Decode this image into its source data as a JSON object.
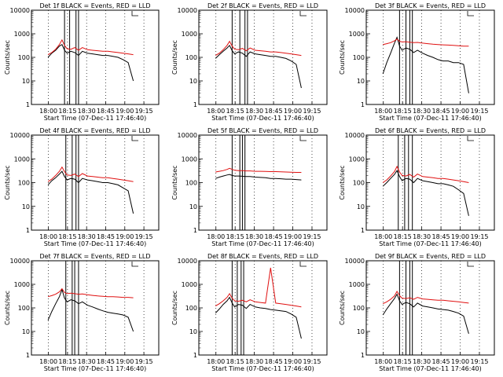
{
  "shared": {
    "ylabel": "Counts/sec",
    "x_ticks": [
      "18:00",
      "18:15",
      "18:30",
      "18:45",
      "19:00",
      "19:15"
    ],
    "y_ticks": [
      "1",
      "10",
      "100",
      "1000",
      "10000"
    ],
    "xlabel": "Start Time (07-Dec-11 17:46:40)",
    "colors": {
      "events": "#000000",
      "lld": "#e01010",
      "axes": "#000000"
    }
  },
  "chart_data": [
    {
      "type": "line",
      "title": "Det 1f BLACK = Events, RED = LLD",
      "xlabel": "Start Time (07-Dec-11 17:46:40)",
      "ylabel": "Counts/sec",
      "ylim": [
        1,
        10000
      ],
      "yscale": "log",
      "xlim_minutes_after_start": [
        0,
        100
      ],
      "x": [
        13,
        16,
        19,
        22,
        24,
        26,
        28,
        31,
        34,
        37,
        40,
        44,
        48,
        52,
        56,
        60,
        64,
        68,
        72,
        76,
        80
      ],
      "series": [
        {
          "name": "Events",
          "color": "#000000",
          "values": [
            100,
            150,
            200,
            300,
            350,
            200,
            150,
            180,
            160,
            120,
            180,
            150,
            140,
            130,
            120,
            120,
            110,
            100,
            80,
            60,
            10
          ]
        },
        {
          "name": "LLD",
          "color": "#e01010",
          "values": [
            130,
            160,
            220,
            350,
            550,
            320,
            230,
            220,
            260,
            200,
            260,
            210,
            200,
            190,
            180,
            180,
            170,
            160,
            150,
            140,
            130
          ]
        }
      ],
      "vlines_dotted": [
        12,
        59
      ],
      "vlines_solid": [
        26,
        30,
        35,
        37
      ]
    },
    {
      "type": "line",
      "title": "Det 2f BLACK = Events, RED = LLD",
      "xlabel": "Start Time (07-Dec-11 17:46:40)",
      "ylabel": "Counts/sec",
      "ylim": [
        1,
        10000
      ],
      "yscale": "log",
      "xlim_minutes_after_start": [
        0,
        100
      ],
      "x": [
        13,
        16,
        19,
        22,
        24,
        26,
        28,
        31,
        34,
        37,
        40,
        44,
        48,
        52,
        56,
        60,
        64,
        68,
        72,
        76,
        80
      ],
      "series": [
        {
          "name": "Events",
          "color": "#000000",
          "values": [
            90,
            130,
            180,
            250,
            320,
            190,
            140,
            170,
            150,
            110,
            170,
            140,
            130,
            120,
            110,
            110,
            100,
            90,
            70,
            50,
            5
          ]
        },
        {
          "name": "LLD",
          "color": "#e01010",
          "values": [
            120,
            150,
            210,
            320,
            480,
            300,
            220,
            210,
            240,
            190,
            250,
            200,
            190,
            180,
            170,
            170,
            160,
            150,
            140,
            130,
            120
          ]
        }
      ],
      "vlines_dotted": [
        12,
        59
      ],
      "vlines_solid": [
        26,
        32,
        36,
        38
      ]
    },
    {
      "type": "line",
      "title": "Det 3f BLACK = Events, RED = LLD",
      "xlabel": "Start Time (07-Dec-11 17:46:40)",
      "ylabel": "Counts/sec",
      "ylim": [
        1,
        10000
      ],
      "yscale": "log",
      "xlim_minutes_after_start": [
        0,
        100
      ],
      "x": [
        13,
        16,
        19,
        22,
        24,
        26,
        28,
        31,
        34,
        37,
        40,
        44,
        48,
        52,
        56,
        60,
        64,
        68,
        72,
        76,
        80
      ],
      "series": [
        {
          "name": "Events",
          "color": "#000000",
          "values": [
            20,
            60,
            150,
            400,
            700,
            300,
            200,
            250,
            220,
            160,
            200,
            150,
            120,
            100,
            80,
            70,
            70,
            60,
            60,
            50,
            3
          ]
        },
        {
          "name": "LLD",
          "color": "#e01010",
          "values": [
            350,
            380,
            420,
            500,
            600,
            480,
            450,
            460,
            440,
            420,
            430,
            400,
            380,
            360,
            350,
            340,
            330,
            320,
            310,
            300,
            300
          ]
        }
      ],
      "vlines_dotted": [
        12,
        59
      ],
      "vlines_solid": [
        26,
        31,
        34,
        36
      ]
    },
    {
      "type": "line",
      "title": "Det 4f BLACK = Events, RED = LLD",
      "xlabel": "Start Time (07-Dec-11 17:46:40)",
      "ylabel": "Counts/sec",
      "ylim": [
        1,
        10000
      ],
      "yscale": "log",
      "xlim_minutes_after_start": [
        0,
        100
      ],
      "x": [
        13,
        16,
        19,
        22,
        24,
        26,
        28,
        31,
        34,
        37,
        40,
        44,
        48,
        52,
        56,
        60,
        64,
        68,
        72,
        76,
        80
      ],
      "series": [
        {
          "name": "Events",
          "color": "#000000",
          "values": [
            80,
            120,
            160,
            230,
            300,
            180,
            130,
            150,
            140,
            100,
            150,
            130,
            120,
            110,
            100,
            100,
            90,
            80,
            60,
            45,
            5
          ]
        },
        {
          "name": "LLD",
          "color": "#e01010",
          "values": [
            110,
            140,
            200,
            300,
            450,
            290,
            210,
            200,
            230,
            180,
            240,
            190,
            180,
            170,
            160,
            160,
            150,
            140,
            130,
            120,
            110
          ]
        }
      ],
      "vlines_dotted": [
        12,
        59
      ],
      "vlines_solid": [
        27,
        32,
        35,
        37
      ]
    },
    {
      "type": "line",
      "title": "Det 5f BLACK = Events, RED = LLD",
      "xlabel": "Start Time (07-Dec-11 17:46:40)",
      "ylabel": "Counts/sec",
      "ylim": [
        1,
        10000
      ],
      "yscale": "log",
      "xlim_minutes_after_start": [
        0,
        100
      ],
      "x": [
        13,
        16,
        19,
        22,
        24,
        26,
        28,
        31,
        34,
        37,
        40,
        44,
        48,
        52,
        56,
        60,
        64,
        68,
        72,
        76,
        80
      ],
      "series": [
        {
          "name": "Events",
          "color": "#000000",
          "values": [
            150,
            170,
            190,
            210,
            220,
            200,
            190,
            190,
            185,
            180,
            180,
            170,
            165,
            160,
            150,
            150,
            145,
            140,
            140,
            135,
            130
          ]
        },
        {
          "name": "LLD",
          "color": "#e01010",
          "values": [
            280,
            300,
            320,
            360,
            400,
            360,
            330,
            320,
            320,
            310,
            310,
            300,
            300,
            295,
            290,
            290,
            285,
            280,
            275,
            270,
            270
          ]
        }
      ],
      "vlines_dotted": [
        12,
        59
      ],
      "vlines_solid": [
        26,
        32,
        34,
        36
      ]
    },
    {
      "type": "line",
      "title": "Det 6f BLACK = Events, RED = LLD",
      "xlabel": "Start Time (07-Dec-11 17:46:40)",
      "ylabel": "Counts/sec",
      "ylim": [
        1,
        10000
      ],
      "yscale": "log",
      "xlim_minutes_after_start": [
        0,
        100
      ],
      "x": [
        13,
        16,
        19,
        22,
        24,
        26,
        28,
        31,
        34,
        37,
        40,
        44,
        48,
        52,
        56,
        60,
        64,
        68,
        72,
        76,
        80
      ],
      "series": [
        {
          "name": "Events",
          "color": "#000000",
          "values": [
            70,
            100,
            150,
            220,
            320,
            180,
            120,
            150,
            140,
            100,
            150,
            120,
            110,
            100,
            90,
            90,
            80,
            70,
            50,
            35,
            4
          ]
        },
        {
          "name": "LLD",
          "color": "#e01010",
          "values": [
            100,
            130,
            190,
            290,
            480,
            280,
            200,
            190,
            220,
            170,
            230,
            180,
            170,
            160,
            150,
            150,
            140,
            130,
            120,
            110,
            100
          ]
        }
      ],
      "vlines_dotted": [
        12,
        59
      ],
      "vlines_solid": [
        25,
        30,
        33,
        36
      ]
    },
    {
      "type": "line",
      "title": "Det 7f BLACK = Events, RED = LLD",
      "xlabel": "Start Time (07-Dec-11 17:46:40)",
      "ylabel": "Counts/sec",
      "ylim": [
        1,
        10000
      ],
      "yscale": "log",
      "xlim_minutes_after_start": [
        0,
        100
      ],
      "x": [
        13,
        16,
        19,
        22,
        24,
        26,
        28,
        31,
        34,
        37,
        40,
        44,
        48,
        52,
        56,
        60,
        64,
        68,
        72,
        76,
        80
      ],
      "series": [
        {
          "name": "Events",
          "color": "#000000",
          "values": [
            30,
            70,
            150,
            300,
            600,
            260,
            180,
            220,
            200,
            150,
            180,
            130,
            110,
            90,
            75,
            65,
            60,
            55,
            50,
            40,
            10
          ]
        },
        {
          "name": "LLD",
          "color": "#e01010",
          "values": [
            300,
            330,
            380,
            480,
            650,
            450,
            400,
            420,
            400,
            380,
            390,
            360,
            340,
            320,
            310,
            300,
            300,
            290,
            280,
            280,
            270
          ]
        }
      ],
      "vlines_dotted": [
        12,
        59
      ],
      "vlines_solid": [
        27,
        32,
        34,
        37
      ]
    },
    {
      "type": "line",
      "title": "Det 8f BLACK = Events, RED = LLD",
      "xlabel": "Start Time (07-Dec-11 17:46:40)",
      "ylabel": "Counts/sec",
      "ylim": [
        1,
        10000
      ],
      "yscale": "log",
      "xlim_minutes_after_start": [
        0,
        100
      ],
      "x": [
        13,
        16,
        19,
        22,
        24,
        26,
        28,
        31,
        34,
        37,
        40,
        44,
        48,
        52,
        56,
        60,
        64,
        68,
        72,
        76,
        80
      ],
      "series": [
        {
          "name": "Events",
          "color": "#000000",
          "values": [
            60,
            90,
            140,
            200,
            280,
            160,
            110,
            140,
            130,
            95,
            140,
            110,
            100,
            95,
            85,
            80,
            75,
            70,
            55,
            40,
            5
          ]
        },
        {
          "name": "LLD",
          "color": "#e01010",
          "values": [
            120,
            150,
            200,
            280,
            400,
            260,
            200,
            190,
            210,
            180,
            220,
            180,
            170,
            160,
            5000,
            160,
            150,
            140,
            130,
            120,
            110
          ]
        }
      ],
      "vlines_dotted": [
        12,
        59
      ],
      "vlines_solid": [
        26,
        30,
        33,
        35
      ]
    },
    {
      "type": "line",
      "title": "Det 9f BLACK = Events, RED = LLD",
      "xlabel": "Start Time (07-Dec-11 17:46:40)",
      "ylabel": "Counts/sec",
      "ylim": [
        1,
        10000
      ],
      "yscale": "log",
      "xlim_minutes_after_start": [
        0,
        100
      ],
      "x": [
        13,
        16,
        19,
        22,
        24,
        26,
        28,
        31,
        34,
        37,
        40,
        44,
        48,
        52,
        56,
        60,
        64,
        68,
        72,
        76,
        80
      ],
      "series": [
        {
          "name": "Events",
          "color": "#000000",
          "values": [
            50,
            90,
            150,
            250,
            380,
            200,
            140,
            170,
            150,
            110,
            160,
            120,
            110,
            100,
            90,
            85,
            80,
            70,
            60,
            45,
            8
          ]
        },
        {
          "name": "LLD",
          "color": "#e01010",
          "values": [
            150,
            180,
            230,
            320,
            500,
            330,
            260,
            250,
            270,
            230,
            280,
            240,
            230,
            220,
            210,
            210,
            200,
            190,
            180,
            170,
            160
          ]
        }
      ],
      "vlines_dotted": [
        12,
        59
      ],
      "vlines_solid": [
        26,
        31,
        34,
        36
      ]
    }
  ]
}
